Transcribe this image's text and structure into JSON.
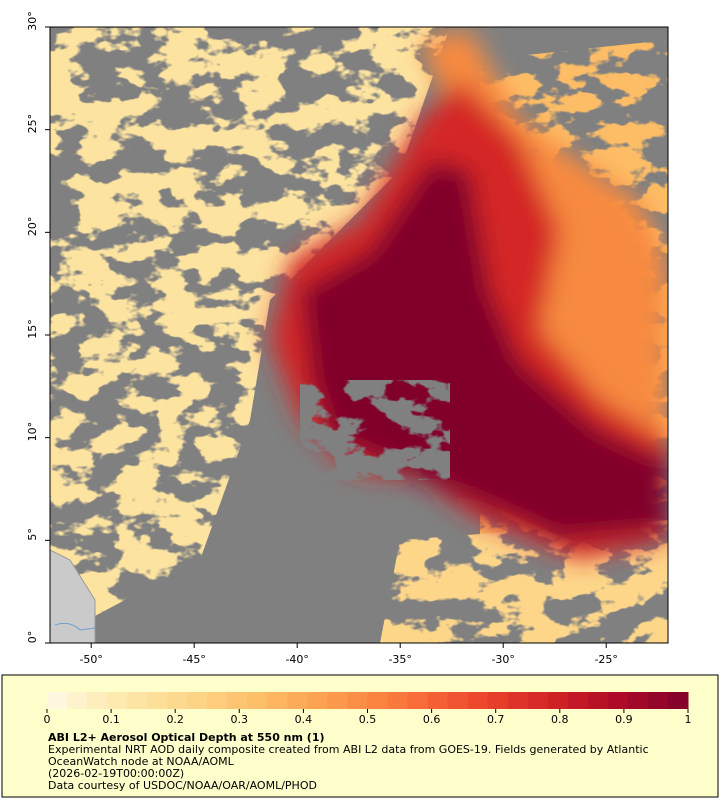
{
  "chart_data": {
    "type": "map",
    "xlim": [
      -52,
      -22
    ],
    "ylim": [
      0,
      30
    ],
    "xticks": [
      {
        "value": -50,
        "label": "-50°"
      },
      {
        "value": -45,
        "label": "-45°"
      },
      {
        "value": -40,
        "label": "-40°"
      },
      {
        "value": -35,
        "label": "-35°"
      },
      {
        "value": -30,
        "label": "-30°"
      },
      {
        "value": -25,
        "label": "-25°"
      }
    ],
    "yticks": [
      {
        "value": 0,
        "label": "0°"
      },
      {
        "value": 5,
        "label": "5°"
      },
      {
        "value": 10,
        "label": "10°"
      },
      {
        "value": 15,
        "label": "15°"
      },
      {
        "value": 20,
        "label": "20°"
      },
      {
        "value": 25,
        "label": "25°"
      },
      {
        "value": 30,
        "label": "30°"
      }
    ],
    "colorbar": {
      "range": [
        0,
        1
      ],
      "ticks": [
        0,
        0.1,
        0.2,
        0.3,
        0.4,
        0.5,
        0.6,
        0.7,
        0.8,
        0.9,
        1
      ],
      "colors": [
        "#fffbe6",
        "#fee9ad",
        "#fdd68a",
        "#fdbd66",
        "#fc9c4c",
        "#f9753a",
        "#ee4a2e",
        "#d42526",
        "#ae0b28",
        "#80002a"
      ]
    },
    "title": "ABI L2+ Aerosol Optical Depth at 550 nm (1)",
    "notes": [
      "Experimental NRT AOD daily composite created from ABI L2 data from GOES-19. Fields generated by Atlantic",
      "OceanWatch node at NOAA/AOML",
      "(2026-02-19T00:00:00Z)",
      "Data courtesy of USDOC/NOAA/OAR/AOML/PHOD"
    ]
  }
}
